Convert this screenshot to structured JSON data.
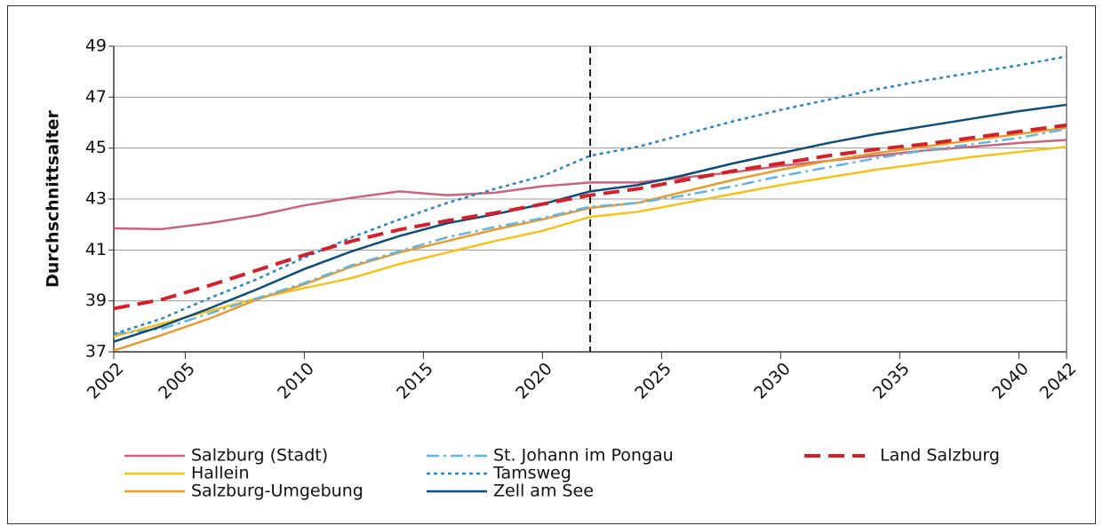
{
  "chart_data": {
    "type": "line",
    "ylabel": "Durchschnittsalter",
    "x": [
      2002,
      2004,
      2006,
      2008,
      2010,
      2012,
      2014,
      2016,
      2018,
      2020,
      2022,
      2024,
      2026,
      2028,
      2030,
      2032,
      2034,
      2036,
      2038,
      2040,
      2042
    ],
    "xlim": [
      2002,
      2042
    ],
    "xticks": [
      2002,
      2005,
      2010,
      2015,
      2020,
      2025,
      2030,
      2035,
      2040,
      2042
    ],
    "ylim": [
      37,
      49
    ],
    "yticks": [
      37,
      39,
      41,
      43,
      45,
      47,
      49
    ],
    "grid": true,
    "vline": 2022,
    "series": [
      {
        "name": "Salzburg (Stadt)",
        "color": "#c9647b",
        "style": "solid",
        "values": [
          41.85,
          41.82,
          42.05,
          42.35,
          42.75,
          43.05,
          43.3,
          43.15,
          43.25,
          43.5,
          43.65,
          43.65,
          43.85,
          44.05,
          44.3,
          44.5,
          44.7,
          44.9,
          45.05,
          45.2,
          45.32
        ]
      },
      {
        "name": "Hallein",
        "color": "#f6c21a",
        "style": "solid",
        "values": [
          37.6,
          38.1,
          38.6,
          39.1,
          39.5,
          39.9,
          40.45,
          40.9,
          41.35,
          41.75,
          42.3,
          42.5,
          42.85,
          43.2,
          43.55,
          43.85,
          44.15,
          44.4,
          44.65,
          44.85,
          45.05
        ]
      },
      {
        "name": "Salzburg-Umgebung",
        "color": "#e89b2e",
        "style": "solid",
        "values": [
          37.05,
          37.65,
          38.3,
          39.05,
          39.65,
          40.35,
          40.9,
          41.35,
          41.8,
          42.2,
          42.65,
          42.85,
          43.3,
          43.75,
          44.15,
          44.5,
          44.8,
          45.05,
          45.3,
          45.55,
          45.8
        ]
      },
      {
        "name": "St. Johann im Pongau",
        "color": "#63b5e0",
        "style": "dashdot",
        "values": [
          37.7,
          37.9,
          38.5,
          39.1,
          39.7,
          40.4,
          40.95,
          41.5,
          41.9,
          42.25,
          42.7,
          42.85,
          43.15,
          43.5,
          43.9,
          44.25,
          44.6,
          44.9,
          45.15,
          45.4,
          45.75
        ]
      },
      {
        "name": "Tamsweg",
        "color": "#2d85c0",
        "style": "dotted",
        "values": [
          37.7,
          38.3,
          39.1,
          39.85,
          40.7,
          41.5,
          42.2,
          42.85,
          43.4,
          43.9,
          44.7,
          45.05,
          45.55,
          46.05,
          46.5,
          46.9,
          47.3,
          47.65,
          47.95,
          48.25,
          48.6
        ]
      },
      {
        "name": "Zell am See",
        "color": "#0e4d78",
        "style": "solid",
        "values": [
          37.4,
          38.0,
          38.7,
          39.45,
          40.25,
          40.95,
          41.55,
          42.05,
          42.4,
          42.8,
          43.3,
          43.55,
          43.95,
          44.4,
          44.8,
          45.2,
          45.55,
          45.85,
          46.15,
          46.45,
          46.7
        ]
      },
      {
        "name": "Land Salzburg",
        "color": "#d4202a",
        "style": "dashed",
        "values": [
          38.7,
          39.05,
          39.6,
          40.2,
          40.8,
          41.35,
          41.8,
          42.15,
          42.45,
          42.8,
          43.15,
          43.4,
          43.75,
          44.1,
          44.4,
          44.7,
          44.95,
          45.15,
          45.4,
          45.65,
          45.9
        ]
      }
    ]
  }
}
